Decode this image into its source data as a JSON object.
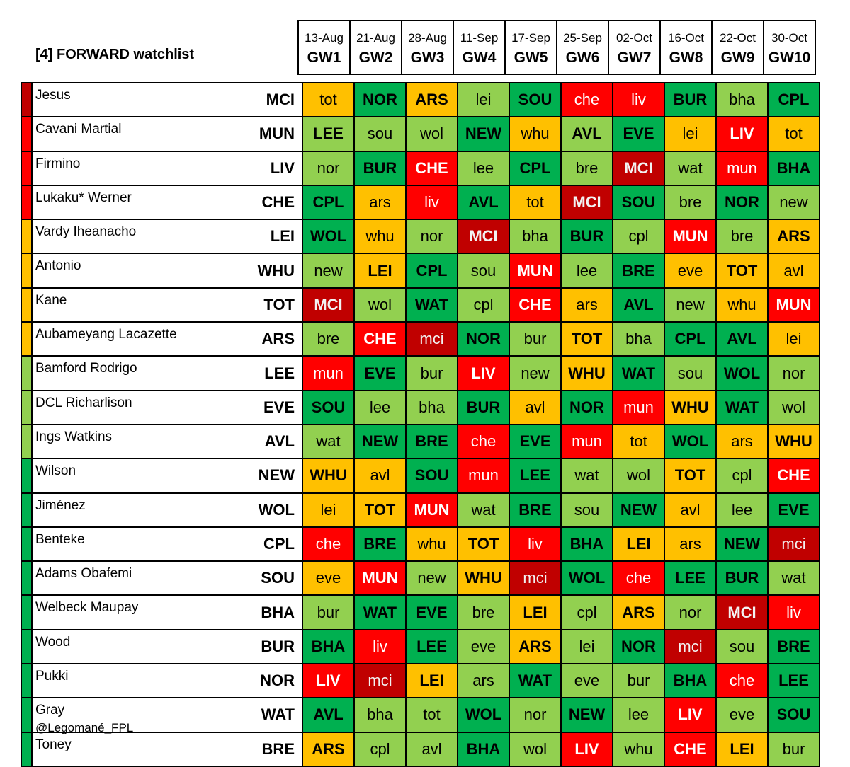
{
  "title": "[4] FORWARD watchlist",
  "footer": "@Legomané_FPL",
  "colors": {
    "dark_red": "#c00000",
    "red": "#ff0000",
    "amber": "#ffc000",
    "light_green": "#92d050",
    "green": "#00b050"
  },
  "gameweeks": [
    {
      "date": "13-Aug",
      "gw": "GW1"
    },
    {
      "date": "21-Aug",
      "gw": "GW2"
    },
    {
      "date": "28-Aug",
      "gw": "GW3"
    },
    {
      "date": "11-Sep",
      "gw": "GW4"
    },
    {
      "date": "17-Sep",
      "gw": "GW5"
    },
    {
      "date": "25-Sep",
      "gw": "GW6"
    },
    {
      "date": "02-Oct",
      "gw": "GW7"
    },
    {
      "date": "16-Oct",
      "gw": "GW8"
    },
    {
      "date": "22-Oct",
      "gw": "GW9"
    },
    {
      "date": "30-Oct",
      "gw": "GW10"
    }
  ],
  "chart_data": {
    "type": "table",
    "title": "[4] FORWARD watchlist",
    "columns": [
      "GW1",
      "GW2",
      "GW3",
      "GW4",
      "GW5",
      "GW6",
      "GW7",
      "GW8",
      "GW9",
      "GW10"
    ],
    "legend": "UPPERCASE = home fixture, lowercase = away fixture; cell colour = fixture difficulty",
    "rows": [
      {
        "players": "Jesus",
        "team": "MCI",
        "strip": "dark_red",
        "fixtures": [
          [
            "tot",
            "amber"
          ],
          [
            "NOR",
            "green"
          ],
          [
            "ARS",
            "amber"
          ],
          [
            "lei",
            "light_green"
          ],
          [
            "SOU",
            "green"
          ],
          [
            "che",
            "red"
          ],
          [
            "liv",
            "red"
          ],
          [
            "BUR",
            "green"
          ],
          [
            "bha",
            "light_green"
          ],
          [
            "CPL",
            "green"
          ]
        ]
      },
      {
        "players": "Cavani Martial",
        "team": "MUN",
        "strip": "red",
        "fixtures": [
          [
            "LEE",
            "light_green"
          ],
          [
            "sou",
            "light_green"
          ],
          [
            "wol",
            "light_green"
          ],
          [
            "NEW",
            "green"
          ],
          [
            "whu",
            "amber"
          ],
          [
            "AVL",
            "light_green"
          ],
          [
            "EVE",
            "green"
          ],
          [
            "lei",
            "amber"
          ],
          [
            "LIV",
            "red"
          ],
          [
            "tot",
            "amber"
          ]
        ]
      },
      {
        "players": "Firmino",
        "team": "LIV",
        "strip": "red",
        "fixtures": [
          [
            "nor",
            "light_green"
          ],
          [
            "BUR",
            "green"
          ],
          [
            "CHE",
            "red"
          ],
          [
            "lee",
            "light_green"
          ],
          [
            "CPL",
            "green"
          ],
          [
            "bre",
            "light_green"
          ],
          [
            "MCI",
            "dark_red"
          ],
          [
            "wat",
            "light_green"
          ],
          [
            "mun",
            "red"
          ],
          [
            "BHA",
            "green"
          ]
        ]
      },
      {
        "players": "Lukaku* Werner",
        "team": "CHE",
        "strip": "red",
        "fixtures": [
          [
            "CPL",
            "green"
          ],
          [
            "ars",
            "amber"
          ],
          [
            "liv",
            "red"
          ],
          [
            "AVL",
            "green"
          ],
          [
            "tot",
            "amber"
          ],
          [
            "MCI",
            "dark_red"
          ],
          [
            "SOU",
            "green"
          ],
          [
            "bre",
            "light_green"
          ],
          [
            "NOR",
            "green"
          ],
          [
            "new",
            "light_green"
          ]
        ]
      },
      {
        "players": "Vardy Iheanacho",
        "team": "LEI",
        "strip": "amber",
        "fixtures": [
          [
            "WOL",
            "green"
          ],
          [
            "whu",
            "amber"
          ],
          [
            "nor",
            "light_green"
          ],
          [
            "MCI",
            "dark_red"
          ],
          [
            "bha",
            "light_green"
          ],
          [
            "BUR",
            "green"
          ],
          [
            "cpl",
            "light_green"
          ],
          [
            "MUN",
            "red"
          ],
          [
            "bre",
            "light_green"
          ],
          [
            "ARS",
            "amber"
          ]
        ]
      },
      {
        "players": "Antonio",
        "team": "WHU",
        "strip": "amber",
        "fixtures": [
          [
            "new",
            "light_green"
          ],
          [
            "LEI",
            "amber"
          ],
          [
            "CPL",
            "green"
          ],
          [
            "sou",
            "light_green"
          ],
          [
            "MUN",
            "red"
          ],
          [
            "lee",
            "light_green"
          ],
          [
            "BRE",
            "green"
          ],
          [
            "eve",
            "amber"
          ],
          [
            "TOT",
            "amber"
          ],
          [
            "avl",
            "amber"
          ]
        ]
      },
      {
        "players": "Kane",
        "team": "TOT",
        "strip": "amber",
        "fixtures": [
          [
            "MCI",
            "dark_red"
          ],
          [
            "wol",
            "light_green"
          ],
          [
            "WAT",
            "green"
          ],
          [
            "cpl",
            "light_green"
          ],
          [
            "CHE",
            "red"
          ],
          [
            "ars",
            "amber"
          ],
          [
            "AVL",
            "green"
          ],
          [
            "new",
            "light_green"
          ],
          [
            "whu",
            "amber"
          ],
          [
            "MUN",
            "red"
          ]
        ]
      },
      {
        "players": "Aubameyang Lacazette",
        "team": "ARS",
        "strip": "amber",
        "fixtures": [
          [
            "bre",
            "light_green"
          ],
          [
            "CHE",
            "red"
          ],
          [
            "mci",
            "dark_red"
          ],
          [
            "NOR",
            "green"
          ],
          [
            "bur",
            "light_green"
          ],
          [
            "TOT",
            "amber"
          ],
          [
            "bha",
            "light_green"
          ],
          [
            "CPL",
            "green"
          ],
          [
            "AVL",
            "green"
          ],
          [
            "lei",
            "amber"
          ]
        ]
      },
      {
        "players": "Bamford Rodrigo",
        "team": "LEE",
        "strip": "light_green",
        "fixtures": [
          [
            "mun",
            "red"
          ],
          [
            "EVE",
            "green"
          ],
          [
            "bur",
            "light_green"
          ],
          [
            "LIV",
            "red"
          ],
          [
            "new",
            "light_green"
          ],
          [
            "WHU",
            "amber"
          ],
          [
            "WAT",
            "green"
          ],
          [
            "sou",
            "light_green"
          ],
          [
            "WOL",
            "green"
          ],
          [
            "nor",
            "light_green"
          ]
        ]
      },
      {
        "players": "DCL Richarlison",
        "team": "EVE",
        "strip": "light_green",
        "fixtures": [
          [
            "SOU",
            "green"
          ],
          [
            "lee",
            "light_green"
          ],
          [
            "bha",
            "light_green"
          ],
          [
            "BUR",
            "green"
          ],
          [
            "avl",
            "amber"
          ],
          [
            "NOR",
            "green"
          ],
          [
            "mun",
            "red"
          ],
          [
            "WHU",
            "amber"
          ],
          [
            "WAT",
            "green"
          ],
          [
            "wol",
            "light_green"
          ]
        ]
      },
      {
        "players": "Ings Watkins",
        "team": "AVL",
        "strip": "light_green",
        "fixtures": [
          [
            "wat",
            "light_green"
          ],
          [
            "NEW",
            "green"
          ],
          [
            "BRE",
            "green"
          ],
          [
            "che",
            "red"
          ],
          [
            "EVE",
            "green"
          ],
          [
            "mun",
            "red"
          ],
          [
            "tot",
            "amber"
          ],
          [
            "WOL",
            "green"
          ],
          [
            "ars",
            "amber"
          ],
          [
            "WHU",
            "amber"
          ]
        ]
      },
      {
        "players": "Wilson",
        "team": "NEW",
        "strip": "green",
        "fixtures": [
          [
            "WHU",
            "amber"
          ],
          [
            "avl",
            "amber"
          ],
          [
            "SOU",
            "green"
          ],
          [
            "mun",
            "red"
          ],
          [
            "LEE",
            "green"
          ],
          [
            "wat",
            "light_green"
          ],
          [
            "wol",
            "light_green"
          ],
          [
            "TOT",
            "amber"
          ],
          [
            "cpl",
            "light_green"
          ],
          [
            "CHE",
            "red"
          ]
        ]
      },
      {
        "players": "Jiménez",
        "team": "WOL",
        "strip": "green",
        "fixtures": [
          [
            "lei",
            "amber"
          ],
          [
            "TOT",
            "amber"
          ],
          [
            "MUN",
            "red"
          ],
          [
            "wat",
            "light_green"
          ],
          [
            "BRE",
            "green"
          ],
          [
            "sou",
            "light_green"
          ],
          [
            "NEW",
            "green"
          ],
          [
            "avl",
            "amber"
          ],
          [
            "lee",
            "light_green"
          ],
          [
            "EVE",
            "green"
          ]
        ]
      },
      {
        "players": "Benteke",
        "team": "CPL",
        "strip": "green",
        "fixtures": [
          [
            "che",
            "red"
          ],
          [
            "BRE",
            "green"
          ],
          [
            "whu",
            "amber"
          ],
          [
            "TOT",
            "amber"
          ],
          [
            "liv",
            "red"
          ],
          [
            "BHA",
            "green"
          ],
          [
            "LEI",
            "amber"
          ],
          [
            "ars",
            "amber"
          ],
          [
            "NEW",
            "green"
          ],
          [
            "mci",
            "dark_red"
          ]
        ]
      },
      {
        "players": "Adams Obafemi",
        "team": "SOU",
        "strip": "green",
        "fixtures": [
          [
            "eve",
            "amber"
          ],
          [
            "MUN",
            "red"
          ],
          [
            "new",
            "light_green"
          ],
          [
            "WHU",
            "amber"
          ],
          [
            "mci",
            "dark_red"
          ],
          [
            "WOL",
            "green"
          ],
          [
            "che",
            "red"
          ],
          [
            "LEE",
            "green"
          ],
          [
            "BUR",
            "green"
          ],
          [
            "wat",
            "light_green"
          ]
        ]
      },
      {
        "players": "Welbeck Maupay",
        "team": "BHA",
        "strip": "green",
        "fixtures": [
          [
            "bur",
            "light_green"
          ],
          [
            "WAT",
            "green"
          ],
          [
            "EVE",
            "green"
          ],
          [
            "bre",
            "light_green"
          ],
          [
            "LEI",
            "amber"
          ],
          [
            "cpl",
            "light_green"
          ],
          [
            "ARS",
            "amber"
          ],
          [
            "nor",
            "light_green"
          ],
          [
            "MCI",
            "dark_red"
          ],
          [
            "liv",
            "red"
          ]
        ]
      },
      {
        "players": "Wood",
        "team": "BUR",
        "strip": "green",
        "fixtures": [
          [
            "BHA",
            "green"
          ],
          [
            "liv",
            "red"
          ],
          [
            "LEE",
            "green"
          ],
          [
            "eve",
            "light_green"
          ],
          [
            "ARS",
            "amber"
          ],
          [
            "lei",
            "light_green"
          ],
          [
            "NOR",
            "green"
          ],
          [
            "mci",
            "dark_red"
          ],
          [
            "sou",
            "light_green"
          ],
          [
            "BRE",
            "green"
          ]
        ]
      },
      {
        "players": "Pukki",
        "team": "NOR",
        "strip": "green",
        "fixtures": [
          [
            "LIV",
            "red"
          ],
          [
            "mci",
            "dark_red"
          ],
          [
            "LEI",
            "amber"
          ],
          [
            "ars",
            "light_green"
          ],
          [
            "WAT",
            "green"
          ],
          [
            "eve",
            "light_green"
          ],
          [
            "bur",
            "light_green"
          ],
          [
            "BHA",
            "green"
          ],
          [
            "che",
            "red"
          ],
          [
            "LEE",
            "green"
          ]
        ]
      },
      {
        "players": "Gray",
        "team": "WAT",
        "strip": "green",
        "fixtures": [
          [
            "AVL",
            "green"
          ],
          [
            "bha",
            "light_green"
          ],
          [
            "tot",
            "light_green"
          ],
          [
            "WOL",
            "green"
          ],
          [
            "nor",
            "light_green"
          ],
          [
            "NEW",
            "green"
          ],
          [
            "lee",
            "light_green"
          ],
          [
            "LIV",
            "red"
          ],
          [
            "eve",
            "light_green"
          ],
          [
            "SOU",
            "green"
          ]
        ]
      },
      {
        "players": "Toney",
        "team": "BRE",
        "strip": "green",
        "fixtures": [
          [
            "ARS",
            "amber"
          ],
          [
            "cpl",
            "light_green"
          ],
          [
            "avl",
            "light_green"
          ],
          [
            "BHA",
            "green"
          ],
          [
            "wol",
            "light_green"
          ],
          [
            "LIV",
            "red"
          ],
          [
            "whu",
            "light_green"
          ],
          [
            "CHE",
            "red"
          ],
          [
            "LEI",
            "amber"
          ],
          [
            "bur",
            "light_green"
          ]
        ]
      }
    ]
  }
}
